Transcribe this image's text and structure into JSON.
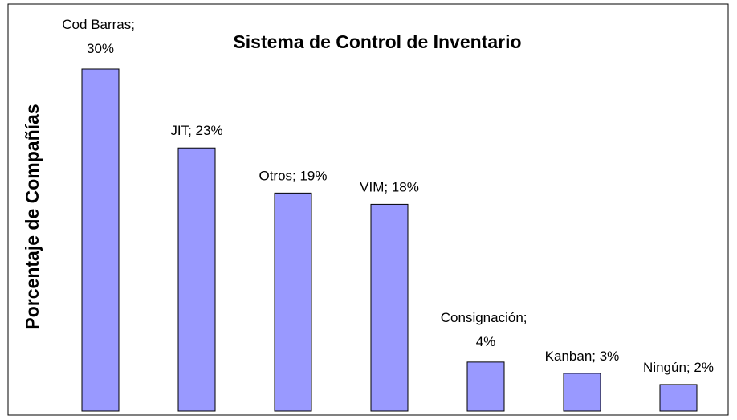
{
  "chart_data": {
    "type": "bar",
    "title": "Sistema de Control de Inventario",
    "ylabel": "Porcentaje de Compañías",
    "values": [
      30,
      23,
      19,
      18,
      4,
      3,
      2
    ],
    "value_labels": [
      "Cod Barras; 30%",
      "JIT; 23%",
      "Otros; 19%",
      "VIM; 18%",
      "Consignación; 4%",
      "Kanban; 3%",
      "Ningún; 2%"
    ],
    "color": "#9999ff"
  }
}
